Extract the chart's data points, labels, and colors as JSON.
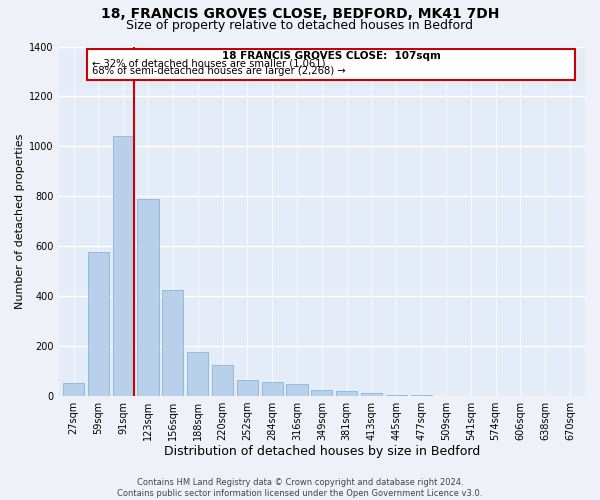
{
  "title1": "18, FRANCIS GROVES CLOSE, BEDFORD, MK41 7DH",
  "title2": "Size of property relative to detached houses in Bedford",
  "xlabel": "Distribution of detached houses by size in Bedford",
  "ylabel": "Number of detached properties",
  "bar_labels": [
    "27sqm",
    "59sqm",
    "91sqm",
    "123sqm",
    "156sqm",
    "188sqm",
    "220sqm",
    "252sqm",
    "284sqm",
    "316sqm",
    "349sqm",
    "381sqm",
    "413sqm",
    "445sqm",
    "477sqm",
    "509sqm",
    "541sqm",
    "574sqm",
    "606sqm",
    "638sqm",
    "670sqm"
  ],
  "bar_values": [
    50,
    575,
    1042,
    790,
    425,
    178,
    125,
    65,
    55,
    48,
    25,
    20,
    10,
    5,
    2,
    0,
    0,
    0,
    0,
    0,
    0
  ],
  "bar_color": "#b8d0ea",
  "bar_edge_color": "#7aaed4",
  "marker_label_line1": "18 FRANCIS GROVES CLOSE:  107sqm",
  "marker_label_line2": "← 32% of detached houses are smaller (1,061)",
  "marker_label_line3": "68% of semi-detached houses are larger (2,268) →",
  "box_edge_color": "#cc0000",
  "vline_color": "#cc0000",
  "vline_x_index": 2,
  "vline_x_offset": 0.43,
  "ylim": [
    0,
    1400
  ],
  "yticks": [
    0,
    200,
    400,
    600,
    800,
    1000,
    1200,
    1400
  ],
  "footer_line1": "Contains HM Land Registry data © Crown copyright and database right 2024.",
  "footer_line2": "Contains public sector information licensed under the Open Government Licence v3.0.",
  "bg_color": "#eef2f8",
  "plot_bg_color": "#e4ecf7",
  "grid_color": "#ffffff",
  "title1_fontsize": 10,
  "title2_fontsize": 9,
  "xlabel_fontsize": 9,
  "ylabel_fontsize": 8,
  "tick_fontsize": 7,
  "footer_fontsize": 6,
  "annotation_fontsize": 7.5
}
